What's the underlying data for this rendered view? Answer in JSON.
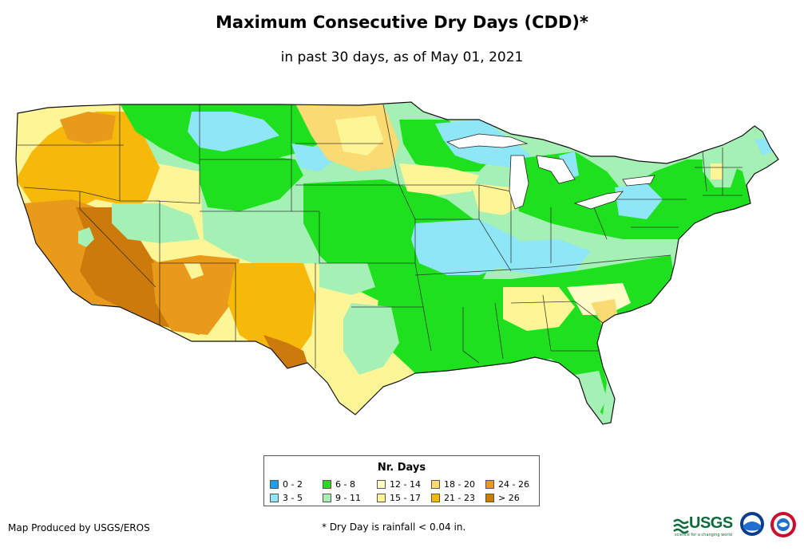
{
  "title": "Maximum Consecutive Dry Days (CDD)*",
  "subtitle": "in past 30 days, as of May 01, 2021",
  "legend": {
    "title": "Nr. Days",
    "items": [
      {
        "label": "0 - 2",
        "color": "#1aa0f0"
      },
      {
        "label": "3 - 5",
        "color": "#8fe6f7"
      },
      {
        "label": "6 - 8",
        "color": "#1fe01f"
      },
      {
        "label": "9 - 11",
        "color": "#a5f0b4"
      },
      {
        "label": "12 - 14",
        "color": "#fffcc8"
      },
      {
        "label": "15 - 17",
        "color": "#fdf596"
      },
      {
        "label": "18 - 20",
        "color": "#f9da73"
      },
      {
        "label": "21 - 23",
        "color": "#f6b90a"
      },
      {
        "label": "24 - 26",
        "color": "#e99a1a"
      },
      {
        "label": "> 26",
        "color": "#cc7a0c"
      }
    ]
  },
  "footer": {
    "producer": "Map Produced by USGS/EROS",
    "note": "* Dry Day is rainfall < 0.04 in."
  },
  "logos": {
    "usgs": "USGS",
    "usgs_tagline": "science for a changing world"
  }
}
